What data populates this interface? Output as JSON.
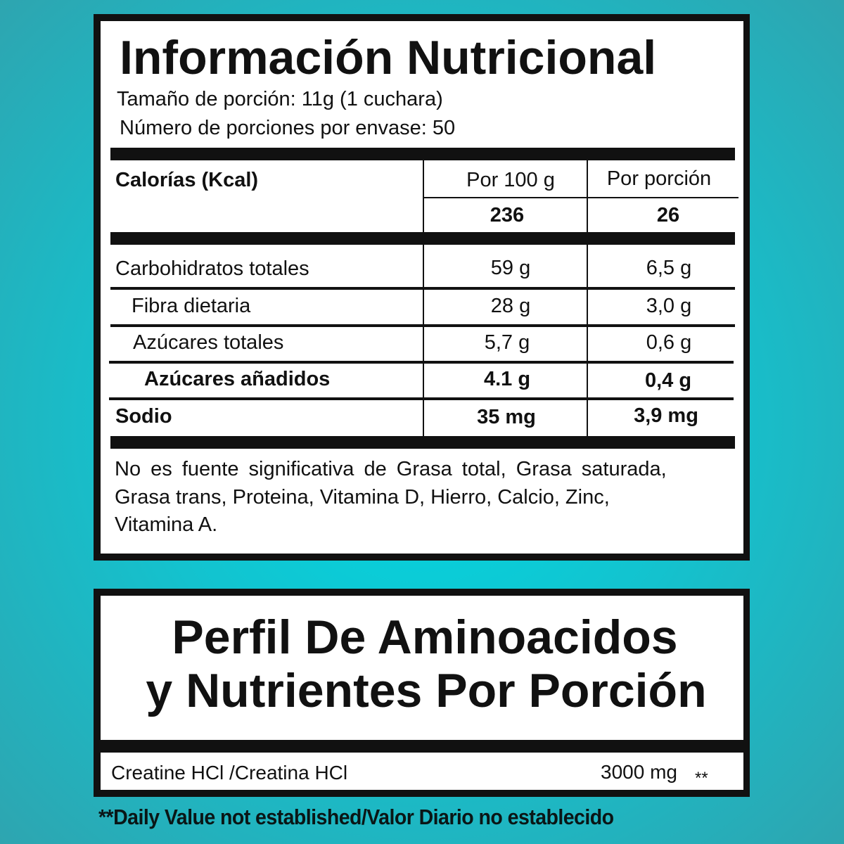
{
  "nutrition": {
    "title": "Información Nutricional",
    "serving_size": "Tamaño de porción: 11g (1 cuchara)",
    "servings_per_container": "Número de porciones por envase: 50",
    "calories_label": "Calorías (Kcal)",
    "col_per100": "Por 100 g",
    "col_perserving": "Por porción",
    "calories_per100": "236",
    "calories_perserving": "26",
    "rows": [
      {
        "label": "Carbohidratos totales",
        "per100": "59 g",
        "perserving": "6,5 g"
      },
      {
        "label": "Fibra dietaria",
        "per100": "28 g",
        "perserving": "3,0 g"
      },
      {
        "label": "Azúcares totales",
        "per100": "5,7 g",
        "perserving": "0,6 g"
      },
      {
        "label": "Azúcares añadidos",
        "per100": "4.1 g",
        "perserving": "0,4 g"
      },
      {
        "label": "Sodio",
        "per100": "35 mg",
        "perserving": "3,9 mg"
      }
    ],
    "footnote_lines": [
      "No es fuente significativa de Grasa total, Grasa saturada,",
      "Grasa trans, Proteina, Vitamina D, Hierro, Calcio, Zinc,",
      "Vitamina A."
    ]
  },
  "amino": {
    "title_line1": "Perfil De Aminoacidos",
    "title_line2": "y Nutrientes Por Porción",
    "item_label": "Creatine HCl /Creatina HCl",
    "item_value": "3000 mg",
    "item_mark": "**"
  },
  "disclaimer": "**Daily Value not established/Valor Diario no establecido",
  "colors": {
    "background": "#13c3cf",
    "ink": "#111111"
  }
}
